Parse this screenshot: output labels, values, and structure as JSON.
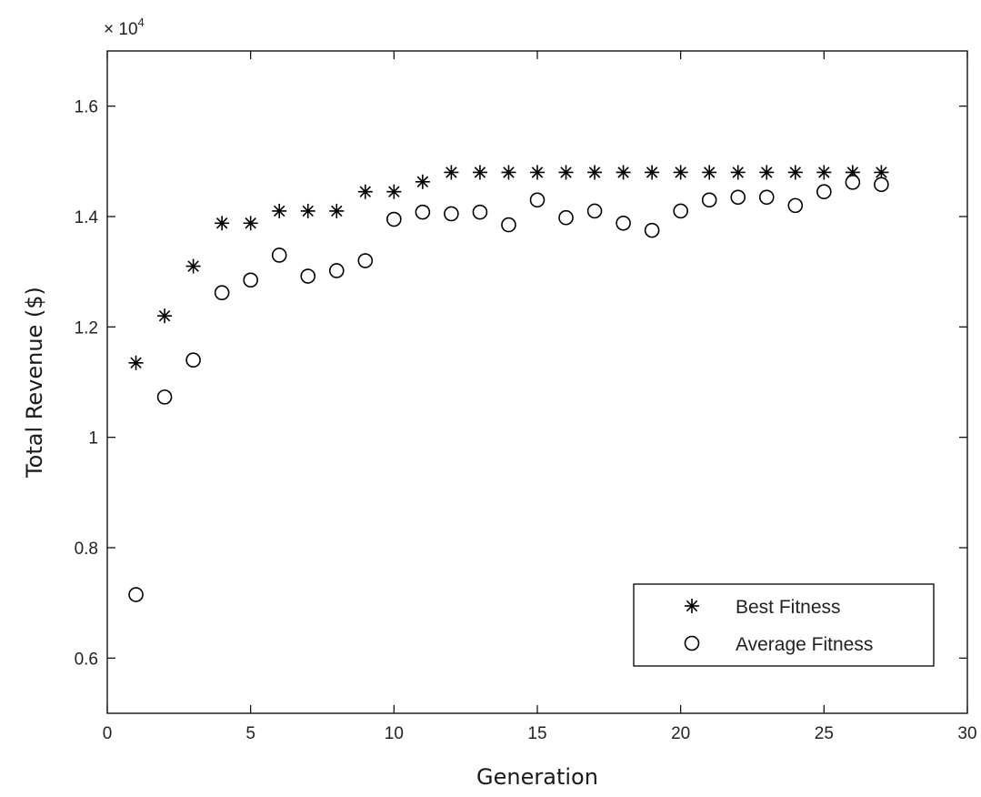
{
  "chart_data": {
    "type": "scatter",
    "xlabel": "Generation",
    "ylabel": "Total Revenue ($)",
    "exponent_label": "× 10",
    "exponent_power": "4",
    "xlim": [
      0,
      30
    ],
    "ylim": [
      0.5,
      1.7
    ],
    "xticks": [
      {
        "value": 0,
        "label": "0"
      },
      {
        "value": 5,
        "label": "5"
      },
      {
        "value": 10,
        "label": "10"
      },
      {
        "value": 15,
        "label": "15"
      },
      {
        "value": 20,
        "label": "20"
      },
      {
        "value": 25,
        "label": "25"
      },
      {
        "value": 30,
        "label": "30"
      }
    ],
    "yticks": [
      {
        "value": 0.6,
        "label": "0.6"
      },
      {
        "value": 0.8,
        "label": "0.8"
      },
      {
        "value": 1.0,
        "label": "1"
      },
      {
        "value": 1.2,
        "label": "1.2"
      },
      {
        "value": 1.4,
        "label": "1.4"
      },
      {
        "value": 1.6,
        "label": "1.6"
      }
    ],
    "legend_position": "bottom-right",
    "x": [
      1,
      2,
      3,
      4,
      5,
      6,
      7,
      8,
      9,
      10,
      11,
      12,
      13,
      14,
      15,
      16,
      17,
      18,
      19,
      20,
      21,
      22,
      23,
      24,
      25,
      26,
      27
    ],
    "series": [
      {
        "name": "Best Fitness",
        "marker": "star",
        "values": [
          1.135,
          1.22,
          1.31,
          1.388,
          1.388,
          1.41,
          1.41,
          1.41,
          1.445,
          1.445,
          1.463,
          1.48,
          1.48,
          1.48,
          1.48,
          1.48,
          1.48,
          1.48,
          1.48,
          1.48,
          1.48,
          1.48,
          1.48,
          1.48,
          1.48,
          1.48,
          1.48
        ]
      },
      {
        "name": "Average Fitness",
        "marker": "circle",
        "values": [
          0.715,
          1.073,
          1.14,
          1.262,
          1.285,
          1.33,
          1.292,
          1.302,
          1.32,
          1.395,
          1.408,
          1.405,
          1.408,
          1.385,
          1.43,
          1.398,
          1.41,
          1.388,
          1.375,
          1.41,
          1.43,
          1.435,
          1.435,
          1.42,
          1.445,
          1.462,
          1.458
        ]
      }
    ]
  }
}
